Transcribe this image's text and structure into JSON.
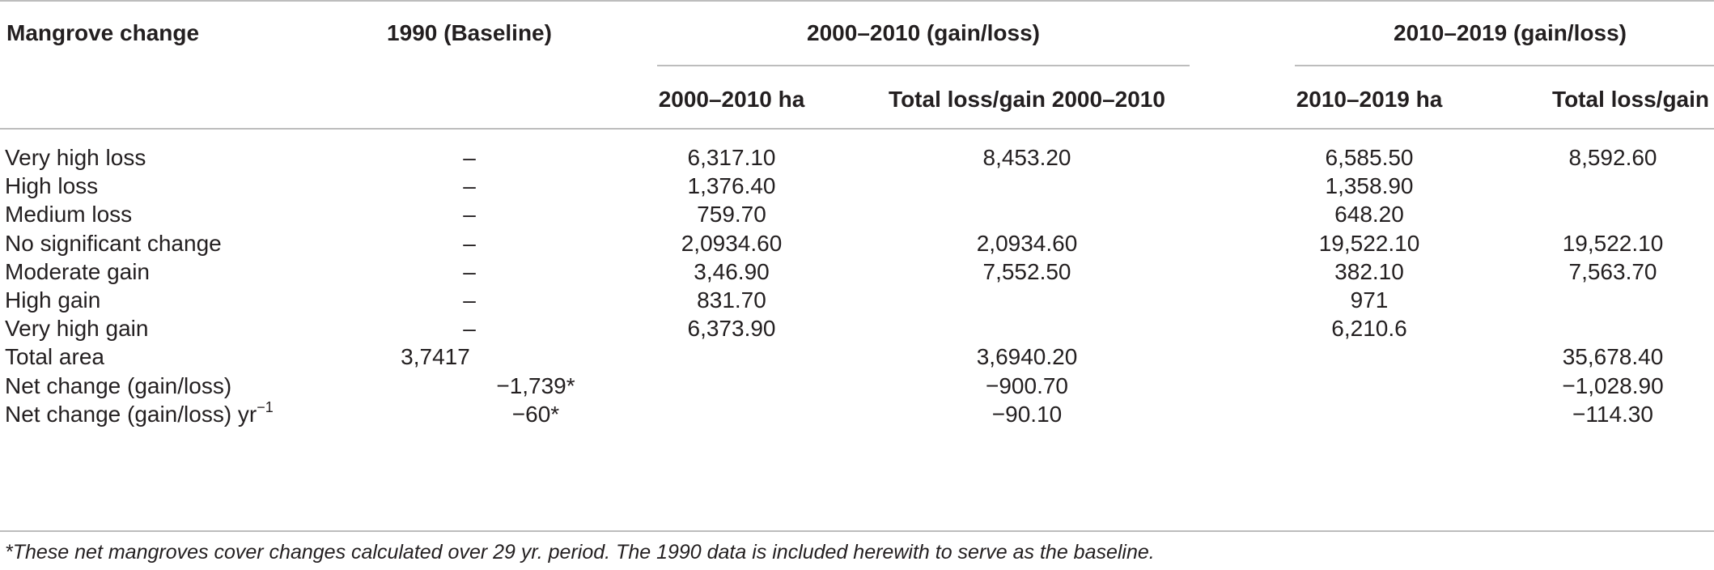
{
  "table": {
    "header": {
      "col_mangrove": "Mangrove change",
      "col_baseline": "1990 (Baseline)",
      "group_2000_2010": "2000–2010 (gain/loss)",
      "group_2010_2019": "2010–2019 (gain/loss)",
      "sub_2000_2010_ha": "2000–2010 ha",
      "sub_2000_2010_total": "Total loss/gain 2000–2010",
      "sub_2010_2019_ha": "2010–2019 ha",
      "sub_2010_2019_total": "Total loss/gain"
    },
    "rows": [
      {
        "label": "Very high loss",
        "baseline": "–",
        "ha_2000_2010": "6,317.10",
        "total_2000_2010": "8,453.20",
        "ha_2010_2019": "6,585.50",
        "total_2010_2019": "8,592.60"
      },
      {
        "label": "High loss",
        "baseline": "–",
        "ha_2000_2010": "1,376.40",
        "total_2000_2010": "",
        "ha_2010_2019": "1,358.90",
        "total_2010_2019": ""
      },
      {
        "label": "Medium loss",
        "baseline": "–",
        "ha_2000_2010": "759.70",
        "total_2000_2010": "",
        "ha_2010_2019": "648.20",
        "total_2010_2019": ""
      },
      {
        "label": "No significant change",
        "baseline": "–",
        "ha_2000_2010": "2,0934.60",
        "total_2000_2010": "2,0934.60",
        "ha_2010_2019": "19,522.10",
        "total_2010_2019": "19,522.10"
      },
      {
        "label": "Moderate gain",
        "baseline": "–",
        "ha_2000_2010": "3,46.90",
        "total_2000_2010": "7,552.50",
        "ha_2010_2019": "382.10",
        "total_2010_2019": "7,563.70"
      },
      {
        "label": "High gain",
        "baseline": "–",
        "ha_2000_2010": "831.70",
        "total_2000_2010": "",
        "ha_2010_2019": "971",
        "total_2010_2019": ""
      },
      {
        "label": "Very high gain",
        "baseline": "–",
        "ha_2000_2010": "6,373.90",
        "total_2000_2010": "",
        "ha_2010_2019": "6,210.6",
        "total_2010_2019": ""
      },
      {
        "label": "Total area",
        "baseline": "3,7417",
        "ha_2000_2010": "",
        "total_2000_2010": "3,6940.20",
        "ha_2010_2019": "",
        "total_2010_2019": "35,678.40"
      },
      {
        "label": "Net change (gain/loss)",
        "baseline": "−1,739*",
        "ha_2000_2010": "",
        "total_2000_2010": "−900.70",
        "ha_2010_2019": "",
        "total_2010_2019": "−1,028.90"
      },
      {
        "label": "Net change (gain/loss) yr",
        "label_sup": "−1",
        "baseline": "−60*",
        "ha_2000_2010": "",
        "total_2000_2010": "−90.10",
        "ha_2010_2019": "",
        "total_2010_2019": "−114.30"
      }
    ],
    "footnote": "*These net mangroves cover changes calculated over 29 yr. period. The 1990 data is included herewith to serve as the baseline."
  }
}
